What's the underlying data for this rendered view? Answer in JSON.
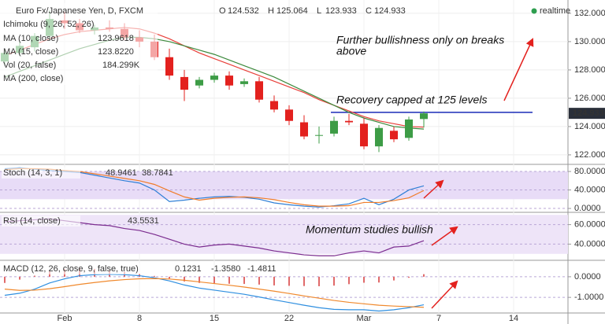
{
  "chart_data": [
    {
      "type": "candlestick",
      "title": "Euro Fx/Japanese Yen, D, FXCM",
      "ohlc_letters": [
        "O",
        "H",
        "L",
        "C"
      ],
      "status": "realtime",
      "categories": [
        null,
        null,
        null,
        null,
        "Feb",
        null,
        null,
        null,
        null,
        "8",
        null,
        null,
        null,
        null,
        "15",
        null,
        null,
        null,
        null,
        "22",
        null,
        null,
        null,
        null,
        "Mar",
        null,
        null,
        null,
        null,
        "7",
        null,
        null,
        null,
        null,
        "14"
      ],
      "open": [
        128.6,
        129.2,
        129.6,
        130.4,
        131.5,
        131.3,
        130.8,
        131.0,
        130.9,
        130.3,
        130.0,
        128.9,
        127.5,
        126.9,
        127.3,
        127.6,
        127.0,
        127.2,
        125.8,
        125.2,
        124.3,
        123.4,
        123.5,
        124.4,
        124.2,
        122.6,
        123.7,
        123.2,
        124.532,
        null,
        null,
        null,
        null,
        null,
        null
      ],
      "high": [
        129.4,
        130.0,
        130.6,
        132.2,
        132.1,
        131.6,
        131.2,
        131.5,
        131.3,
        130.8,
        130.5,
        129.5,
        128.0,
        127.5,
        127.8,
        127.9,
        127.4,
        127.5,
        126.2,
        125.5,
        124.8,
        124.0,
        124.7,
        124.9,
        124.6,
        124.1,
        124.0,
        124.7,
        125.064,
        null,
        null,
        null,
        null,
        null,
        null
      ],
      "low": [
        128.3,
        129.0,
        129.3,
        130.1,
        130.9,
        130.6,
        130.5,
        130.7,
        130.1,
        129.6,
        128.7,
        127.3,
        125.8,
        126.7,
        127.1,
        126.6,
        126.8,
        125.7,
        125.0,
        124.1,
        123.1,
        122.8,
        123.3,
        124.1,
        122.4,
        122.2,
        122.9,
        123.0,
        123.933,
        null,
        null,
        null,
        null,
        null,
        null
      ],
      "close": [
        129.2,
        129.7,
        130.4,
        131.6,
        131.3,
        130.8,
        131.0,
        130.9,
        130.3,
        130.0,
        128.9,
        127.6,
        126.6,
        127.3,
        127.6,
        126.9,
        127.2,
        125.9,
        125.2,
        124.4,
        123.3,
        123.4,
        124.4,
        124.3,
        122.6,
        123.9,
        123.1,
        124.5,
        124.933,
        null,
        null,
        null,
        null,
        null,
        null
      ],
      "close_labels": [
        null,
        null,
        null,
        null,
        null,
        null,
        null,
        null,
        null,
        null,
        null,
        null,
        null,
        null,
        null,
        null,
        null,
        null,
        null,
        null,
        null,
        null,
        null,
        null,
        null,
        null,
        null,
        null,
        "124.9330",
        null,
        null,
        null,
        null,
        null,
        null
      ],
      "up_color": "#3d9c46",
      "down_color": "#e3211e",
      "series": [
        {
          "name": "MA (10, close)",
          "color": "#e8403a",
          "values": [
            129.0,
            129.4,
            129.8,
            130.2,
            130.5,
            130.7,
            130.8,
            130.9,
            131.0,
            130.9,
            130.6,
            130.2,
            129.7,
            129.2,
            128.8,
            128.4,
            128.0,
            127.6,
            127.2,
            126.8,
            126.4,
            125.9,
            125.5,
            125.1,
            124.7,
            124.4,
            124.2,
            124.0,
            123.9618,
            null,
            null,
            null,
            null,
            null,
            null
          ]
        },
        {
          "name": "MA (15, close)",
          "color": "#3d8a3d",
          "values": [
            127.5,
            127.9,
            128.3,
            128.7,
            129.1,
            129.5,
            129.8,
            130.1,
            130.3,
            130.3,
            130.2,
            130.0,
            129.7,
            129.4,
            129.1,
            128.7,
            128.3,
            127.9,
            127.5,
            127.0,
            126.5,
            126.0,
            125.5,
            125.0,
            124.6,
            124.3,
            124.0,
            123.9,
            123.822,
            null,
            null,
            null,
            null,
            null,
            null
          ],
          "value_labels": [
            null,
            null,
            null,
            null,
            null,
            null,
            null,
            null,
            null,
            null,
            null,
            null,
            null,
            null,
            null,
            null,
            null,
            null,
            null,
            null,
            null,
            null,
            null,
            null,
            null,
            null,
            null,
            null,
            "123.8220",
            null,
            null,
            null,
            null,
            null,
            null
          ]
        }
      ],
      "legend_extra": [
        "Ichimoku (9, 26, 52, 26)",
        "Vol (20, false)",
        "MA (200, close)"
      ],
      "volume_label": "184.299K",
      "resistance": 125,
      "resistance_color": "#1a2bb8",
      "annotations": [
        "Further bullishness only on breaks",
        "above",
        "Recovery capped at 125 levels"
      ],
      "ylim": [
        121.44,
        132.94
      ],
      "yticks": [
        {
          "value": 132,
          "label": "132.0000"
        },
        {
          "value": 130,
          "label": "130.0000"
        },
        {
          "value": 128,
          "label": "128.0000"
        },
        {
          "value": 126,
          "label": "126.0000"
        },
        {
          "value": 124,
          "label": "124.0000"
        },
        {
          "value": 122,
          "label": "122.0000"
        }
      ]
    },
    {
      "type": "line",
      "title": "Stoch (14, 3, 1)",
      "band": [
        20,
        80
      ],
      "band_color": "#e8dcf7",
      "series": [
        {
          "color": "#2f7fd6",
          "values": [
            86,
            88,
            85,
            82,
            80,
            78,
            72,
            66,
            60,
            55,
            40,
            15,
            18,
            22,
            25,
            26,
            24,
            20,
            12,
            8,
            5,
            3,
            6,
            10,
            22,
            8,
            20,
            40,
            48.9461,
            null,
            null,
            null,
            null,
            null,
            null
          ]
        },
        {
          "color": "#f07c2a",
          "values": [
            84,
            86,
            86,
            85,
            82,
            80,
            75,
            70,
            65,
            60,
            52,
            38,
            25,
            18,
            22,
            24,
            25,
            23,
            19,
            13,
            8,
            5,
            5,
            6,
            13,
            13,
            17,
            23,
            38.7841,
            null,
            null,
            null,
            null,
            null,
            null
          ]
        }
      ],
      "ylim": [
        -5,
        92
      ],
      "yticks": [
        {
          "value": 80,
          "label": "80.0000"
        },
        {
          "value": 40,
          "label": "40.0000"
        },
        {
          "value": 0,
          "label": "0.0000"
        }
      ]
    },
    {
      "type": "line",
      "title": "RSI (14, close)",
      "band": [
        30,
        70
      ],
      "band_color": "#eee4f8",
      "annotations": [
        "Momentum studies bullish"
      ],
      "series": [
        {
          "color": "#7b2c8f",
          "values": [
            63,
            64,
            65,
            66,
            64,
            62,
            60,
            59,
            56,
            54,
            50,
            45,
            40,
            37,
            39,
            40,
            38,
            36,
            33,
            31,
            29,
            28,
            28,
            31,
            33,
            31,
            37,
            38,
            43.5531,
            null,
            null,
            null,
            null,
            null,
            null
          ]
        }
      ],
      "ylim": [
        25,
        71
      ],
      "yticks": [
        {
          "value": 60,
          "label": "60.0000"
        },
        {
          "value": 40,
          "label": "40.0000"
        }
      ]
    },
    {
      "type": "line",
      "title": "MACD (12, 26, close, 9, false, true)",
      "series": [
        {
          "kind": "histogram",
          "color": "#e06a6a",
          "values": [
            -0.3,
            -0.14,
            0.05,
            0.28,
            0.38,
            0.42,
            0.38,
            0.32,
            0.24,
            0.15,
            0.04,
            -0.09,
            -0.23,
            -0.3,
            -0.32,
            -0.34,
            -0.35,
            -0.38,
            -0.42,
            -0.44,
            -0.45,
            -0.46,
            -0.43,
            -0.36,
            -0.29,
            -0.28,
            -0.18,
            -0.05,
            0.1231,
            null,
            null,
            null,
            null,
            null,
            null
          ]
        },
        {
          "color": "#2f8fe0",
          "values": [
            -0.9,
            -0.8,
            -0.6,
            -0.3,
            -0.1,
            0.05,
            0.1,
            0.12,
            0.1,
            0.05,
            -0.05,
            -0.2,
            -0.4,
            -0.55,
            -0.65,
            -0.75,
            -0.85,
            -0.98,
            -1.12,
            -1.25,
            -1.38,
            -1.5,
            -1.58,
            -1.6,
            -1.6,
            -1.66,
            -1.6,
            -1.5,
            -1.358,
            null,
            null,
            null,
            null,
            null,
            null
          ],
          "value_labels": [
            null,
            null,
            null,
            null,
            null,
            null,
            null,
            null,
            null,
            null,
            null,
            null,
            null,
            null,
            null,
            null,
            null,
            null,
            null,
            null,
            null,
            null,
            null,
            null,
            null,
            null,
            null,
            null,
            "-1.3580",
            null,
            null,
            null,
            null,
            null,
            null
          ]
        },
        {
          "color": "#f0892d",
          "values": [
            -0.6,
            -0.66,
            -0.65,
            -0.58,
            -0.48,
            -0.37,
            -0.28,
            -0.2,
            -0.14,
            -0.1,
            -0.09,
            -0.11,
            -0.17,
            -0.25,
            -0.33,
            -0.41,
            -0.5,
            -0.6,
            -0.7,
            -0.81,
            -0.93,
            -1.04,
            -1.15,
            -1.24,
            -1.31,
            -1.38,
            -1.42,
            -1.45,
            -1.4811,
            null,
            null,
            null,
            null,
            null,
            null
          ]
        }
      ],
      "ylim": [
        -1.68,
        0.72
      ],
      "yticks": [
        {
          "value": 0,
          "label": "0.0000"
        },
        {
          "value": -1,
          "label": "-1.0000"
        }
      ]
    }
  ]
}
